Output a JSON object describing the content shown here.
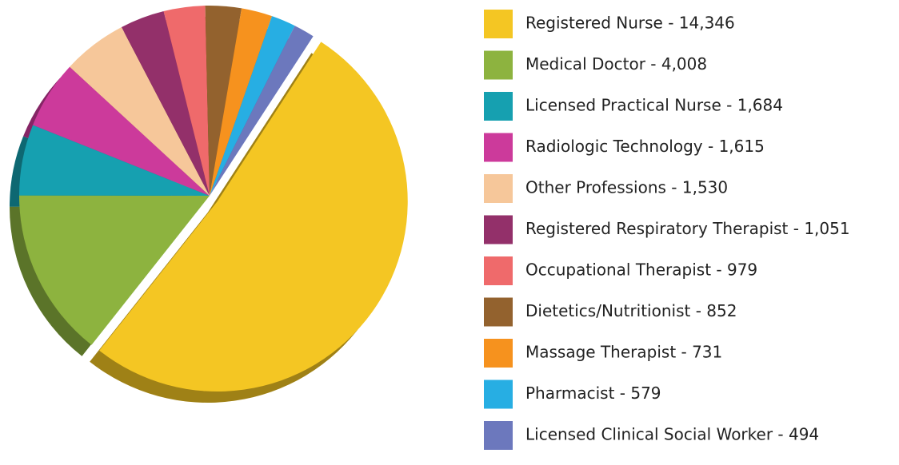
{
  "chart_data": {
    "type": "pie",
    "categories": [
      "Registered Nurse - 14,346",
      "Medical Doctor - 4,008",
      "Licensed Practical Nurse - 1,684",
      "Radiologic Technology - 1,615",
      "Other Professions - 1,530",
      "Registered Respiratory Therapist - 1,051",
      "Occupational Therapist - 979",
      "Dietetics/Nutritionist - 852",
      "Massage Therapist - 731",
      "Pharmacist - 579",
      "Licensed Clinical Social Worker - 494"
    ],
    "values": [
      14346,
      4008,
      1684,
      1615,
      1530,
      1051,
      979,
      852,
      731,
      579,
      494
    ],
    "colors": [
      "#f4c623",
      "#8db33f",
      "#16a0b0",
      "#cc3a9b",
      "#f6c79a",
      "#93306a",
      "#ef6a6b",
      "#93622e",
      "#f6921e",
      "#27aee3",
      "#6c78bd"
    ],
    "legend": "right"
  }
}
